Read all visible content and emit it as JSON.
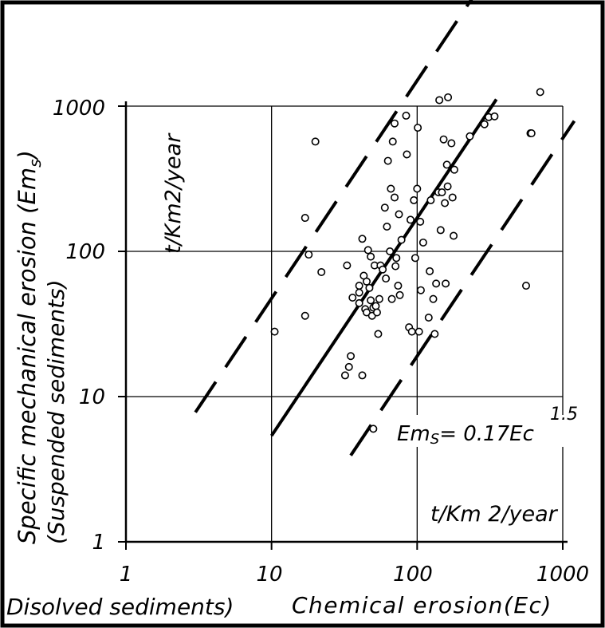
{
  "chart_data": {
    "type": "scatter",
    "title": "",
    "xlabel_line1": "Disolved sediments)",
    "xlabel_line2": "Chemical erosion(Ec)",
    "ylabel_line1": "Specific mechanical erosion (Em",
    "ylabel_sub": "s",
    "ylabel_close": ")",
    "ylabel_line2": "(Suspended sediments)",
    "x_unit_label": "t/Km 2/year",
    "y_unit_label": "t/Km2/year",
    "xscale": "log",
    "yscale": "log",
    "xlim": [
      1,
      1000
    ],
    "ylim": [
      1,
      1000
    ],
    "xticks": [
      "1",
      "10",
      "100",
      "1000"
    ],
    "yticks": [
      "1",
      "10",
      "100",
      "1000"
    ],
    "grid": true,
    "equation": {
      "lhs": "Em",
      "lhs_sub": "S",
      "rhs": "= 0.17Ec",
      "exponent": "1.5"
    },
    "lines": [
      {
        "style": "solid",
        "k": 0.17,
        "exponent": 1.5,
        "x": [
          10,
          350
        ]
      },
      {
        "style": "dashed",
        "k": 1.5,
        "exponent": 1.5,
        "x": [
          3,
          350
        ]
      },
      {
        "style": "dashed",
        "k": 0.019,
        "exponent": 1.5,
        "x": [
          35,
          1200
        ]
      }
    ],
    "points": [
      [
        10.5,
        28
      ],
      [
        17,
        170
      ],
      [
        17,
        36
      ],
      [
        18,
        95
      ],
      [
        20,
        570
      ],
      [
        22,
        72
      ],
      [
        32,
        14
      ],
      [
        33,
        80
      ],
      [
        34,
        16
      ],
      [
        35,
        19
      ],
      [
        36,
        48
      ],
      [
        40,
        52
      ],
      [
        40,
        58
      ],
      [
        40,
        44
      ],
      [
        42,
        122
      ],
      [
        42,
        14
      ],
      [
        43,
        68
      ],
      [
        44,
        40
      ],
      [
        45,
        62
      ],
      [
        45,
        38
      ],
      [
        46,
        102
      ],
      [
        47,
        56
      ],
      [
        48,
        92
      ],
      [
        48,
        46
      ],
      [
        49,
        36
      ],
      [
        50,
        41
      ],
      [
        50,
        6
      ],
      [
        51,
        80
      ],
      [
        52,
        42
      ],
      [
        53,
        38
      ],
      [
        54,
        27
      ],
      [
        55,
        47
      ],
      [
        56,
        80
      ],
      [
        58,
        75
      ],
      [
        60,
        200
      ],
      [
        61,
        65
      ],
      [
        62,
        148
      ],
      [
        63,
        420
      ],
      [
        65,
        100
      ],
      [
        66,
        270
      ],
      [
        67,
        47
      ],
      [
        68,
        570
      ],
      [
        70,
        235
      ],
      [
        70,
        760
      ],
      [
        71,
        79
      ],
      [
        72,
        90
      ],
      [
        74,
        58
      ],
      [
        75,
        180
      ],
      [
        76,
        50
      ],
      [
        78,
        120
      ],
      [
        84,
        860
      ],
      [
        85,
        465
      ],
      [
        88,
        30
      ],
      [
        90,
        165
      ],
      [
        92,
        28
      ],
      [
        95,
        225
      ],
      [
        97,
        90
      ],
      [
        100,
        270
      ],
      [
        101,
        710
      ],
      [
        103,
        28
      ],
      [
        105,
        160
      ],
      [
        106,
        54
      ],
      [
        110,
        115
      ],
      [
        120,
        35
      ],
      [
        122,
        73
      ],
      [
        124,
        225
      ],
      [
        129,
        47
      ],
      [
        132,
        27
      ],
      [
        135,
        60
      ],
      [
        140,
        255
      ],
      [
        142,
        1100
      ],
      [
        145,
        140
      ],
      [
        148,
        255
      ],
      [
        152,
        590
      ],
      [
        155,
        215
      ],
      [
        157,
        60
      ],
      [
        160,
        395
      ],
      [
        162,
        280
      ],
      [
        163,
        1150
      ],
      [
        172,
        555
      ],
      [
        175,
        235
      ],
      [
        178,
        128
      ],
      [
        180,
        365
      ],
      [
        230,
        620
      ],
      [
        290,
        750
      ],
      [
        310,
        840
      ],
      [
        340,
        850
      ],
      [
        560,
        58
      ],
      [
        600,
        650
      ],
      [
        610,
        650
      ],
      [
        700,
        1250
      ]
    ]
  }
}
